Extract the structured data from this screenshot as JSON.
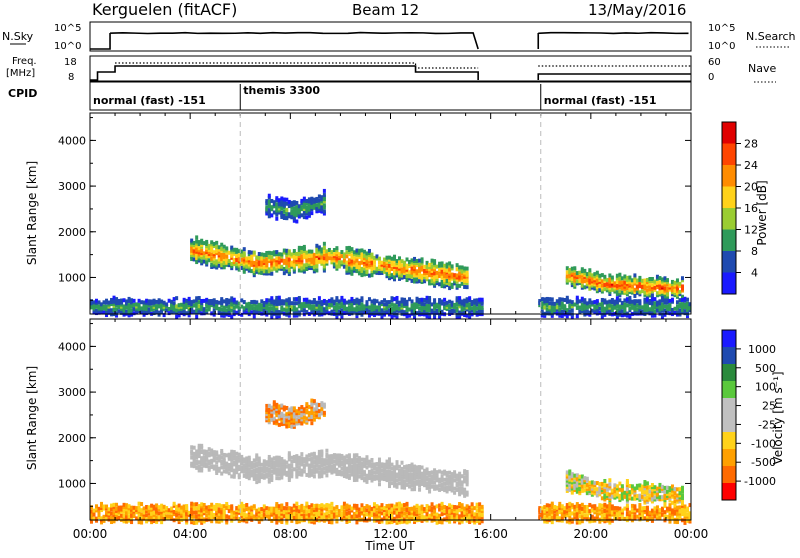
{
  "header": {
    "station": "Kerguelen (fitACF)",
    "beam": "Beam 12",
    "date": "13/May/2016"
  },
  "panels": {
    "nsky": {
      "left_label": "N.Sky",
      "top_tick": "10^5",
      "bottom_tick": "10^0",
      "right_top_tick": "10^5",
      "right_bottom_tick": "10^0",
      "right_label": "N.Search"
    },
    "freq": {
      "left_label_1": "Freq.",
      "left_label_2": "[MHz]",
      "top_tick": "18",
      "bottom_tick": "8",
      "right_top_tick": "60",
      "right_bottom_tick": "0",
      "right_label": "Nave"
    },
    "cpid": {
      "label": "CPID",
      "segments": [
        {
          "text": "normal (fast) -151",
          "start_hour": 0
        },
        {
          "text": "themis 3300",
          "start_hour": 6
        },
        {
          "text": "normal (fast) -151",
          "start_hour": 18
        }
      ]
    }
  },
  "colors": {
    "power_scale": [
      "#1a1aff",
      "#1f4ab0",
      "#2f9a5a",
      "#9acd32",
      "#ffd21a",
      "#ff8c00",
      "#ff4500",
      "#e00000"
    ],
    "velocity_scale": [
      "#ff0000",
      "#ff6a00",
      "#ffa000",
      "#ffd21a",
      "#c0c0c0",
      "#c0c0c0",
      "#5ac83c",
      "#2a8a3c",
      "#1f4ab0",
      "#1a1aff"
    ],
    "ground_scatter": "#b9b9b9"
  },
  "chart_data": [
    {
      "type": "heatmap",
      "title": "",
      "xlabel": "Time UT",
      "ylabel": "Slant Range [km]",
      "xlim": [
        0,
        24
      ],
      "ylim": [
        200,
        4600
      ],
      "x_ticks": [
        "00:00",
        "04:00",
        "08:00",
        "12:00",
        "16:00",
        "20:00",
        "00:00"
      ],
      "y_ticks": [
        "1000",
        "2000",
        "3000",
        "4000"
      ],
      "colorbar": {
        "label": "Power [dB]",
        "ticks": [
          "4",
          "8",
          "12",
          "16",
          "20",
          "24",
          "28"
        ],
        "range": [
          0,
          30
        ]
      },
      "data_gaps_hours": [
        [
          15.6,
          17.8
        ]
      ],
      "scatter_regions": [
        {
          "t0": 4.0,
          "t1": 15.0,
          "range_center_km": [
            1650,
            1350,
            1500,
            1250,
            1050
          ],
          "range_halfwidth_km": 230,
          "peak_power_db": 26
        },
        {
          "t0": 19.0,
          "t1": 23.7,
          "range_center_km": [
            1100,
            900,
            850,
            800
          ],
          "range_halfwidth_km": 180,
          "peak_power_db": 28
        },
        {
          "t0": 7.0,
          "t1": 9.3,
          "range_center_km": [
            2600,
            2500,
            2700
          ],
          "range_halfwidth_km": 200,
          "peak_power_db": 12
        },
        {
          "t0": 0.0,
          "t1": 24.0,
          "range_center_km": [
            400,
            400
          ],
          "range_halfwidth_km": 170,
          "peak_power_db": 12
        }
      ]
    },
    {
      "type": "heatmap",
      "title": "",
      "xlabel": "Time UT",
      "ylabel": "Slant Range [km]",
      "xlim": [
        0,
        24
      ],
      "ylim": [
        200,
        4600
      ],
      "x_ticks": [
        "00:00",
        "04:00",
        "08:00",
        "12:00",
        "16:00",
        "20:00",
        "00:00"
      ],
      "y_ticks": [
        "1000",
        "2000",
        "3000",
        "4000"
      ],
      "colorbar": {
        "label": "Velocity [m s⁻¹]",
        "ticks": [
          "1000",
          "500",
          "100",
          "25",
          "-25",
          "-100",
          "-500",
          "-1000"
        ],
        "range": [
          -1000,
          1000
        ]
      },
      "data_gaps_hours": [
        [
          15.6,
          17.8
        ]
      ]
    }
  ],
  "footer": {
    "xlabel": "Time UT"
  }
}
